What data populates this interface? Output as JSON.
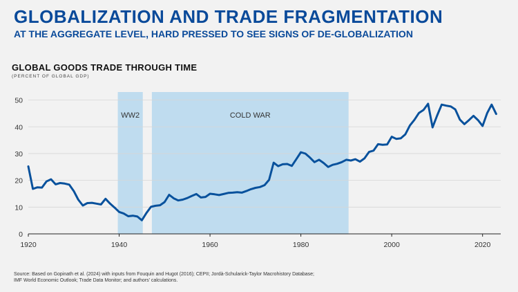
{
  "header": {
    "title": "GLOBALIZATION AND TRADE FRAGMENTATION",
    "subtitle": "AT THE AGGREGATE LEVEL, HARD PRESSED TO SEE SIGNS OF DE-GLOBALIZATION"
  },
  "colors": {
    "brand": "#0a4a9a",
    "line": "#08519c",
    "shade": "#bfdcef",
    "background": "#f2f2f2"
  },
  "chart_data": {
    "type": "line",
    "title": "GLOBAL GOODS TRADE THROUGH TIME",
    "subtitle": "(PERCENT OF GLOBAL GDP)",
    "xlim": [
      1920,
      2024
    ],
    "ylim": [
      0,
      53
    ],
    "x_ticks": [
      1920,
      1940,
      1960,
      1980,
      2000,
      2020
    ],
    "y_ticks": [
      0,
      10,
      20,
      30,
      40,
      50
    ],
    "grid": true,
    "shaded_regions": [
      {
        "label": "WW2",
        "start": 1939.7,
        "end": 1945.2
      },
      {
        "label": "COLD WAR",
        "start": 1947.2,
        "end": 1990.5
      }
    ],
    "series": [
      {
        "x": [
          1920,
          1921,
          1922,
          1923,
          1924,
          1925,
          1926,
          1927,
          1928,
          1929,
          1930,
          1931,
          1932,
          1933,
          1934,
          1935,
          1936,
          1937,
          1938,
          1939,
          1940,
          1941,
          1942,
          1943,
          1944,
          1945,
          1946,
          1947,
          1948,
          1949,
          1950,
          1951,
          1952,
          1953,
          1954,
          1955,
          1956,
          1957,
          1958,
          1959,
          1960,
          1961,
          1962,
          1963,
          1964,
          1965,
          1966,
          1967,
          1968,
          1969,
          1970,
          1971,
          1972,
          1973,
          1974,
          1975,
          1976,
          1977,
          1978,
          1979,
          1980,
          1981,
          1982,
          1983,
          1984,
          1985,
          1986,
          1987,
          1988,
          1989,
          1990,
          1991,
          1992,
          1993,
          1994,
          1995,
          1996,
          1997,
          1998,
          1999,
          2000,
          2001,
          2002,
          2003,
          2004,
          2005,
          2006,
          2007,
          2008,
          2009,
          2010,
          2011,
          2012,
          2013,
          2014,
          2015,
          2016,
          2017,
          2018,
          2019,
          2020,
          2021,
          2022,
          2023
        ],
        "y": [
          25.2,
          16.8,
          17.4,
          17.3,
          19.6,
          20.4,
          18.5,
          19.0,
          18.8,
          18.4,
          16.0,
          12.8,
          10.6,
          11.5,
          11.6,
          11.3,
          11.0,
          13.1,
          11.3,
          9.8,
          8.2,
          7.6,
          6.6,
          6.8,
          6.5,
          5.1,
          7.8,
          10.1,
          10.5,
          10.7,
          11.9,
          14.6,
          13.3,
          12.5,
          12.8,
          13.4,
          14.2,
          14.9,
          13.6,
          13.8,
          15.0,
          14.8,
          14.5,
          14.9,
          15.3,
          15.4,
          15.6,
          15.4,
          16.0,
          16.7,
          17.2,
          17.5,
          18.2,
          20.2,
          26.6,
          25.3,
          26.0,
          26.1,
          25.4,
          27.9,
          30.5,
          30.0,
          28.5,
          26.8,
          27.7,
          26.5,
          25.0,
          25.8,
          26.2,
          26.8,
          27.7,
          27.4,
          27.9,
          27.0,
          28.2,
          30.6,
          31.1,
          33.5,
          33.3,
          33.4,
          36.3,
          35.5,
          35.7,
          37.2,
          40.5,
          42.6,
          45.2,
          46.3,
          48.6,
          39.8,
          44.2,
          48.3,
          47.9,
          47.6,
          46.5,
          42.7,
          41.0,
          42.5,
          44.1,
          42.5,
          40.3,
          45.1,
          48.3,
          44.8
        ]
      }
    ]
  },
  "source": {
    "lines": [
      "Source: Based on Gopinath et al. (2024) with inputs from Fouquin and Hugot (2016); CEPII; Jordà-Schularick-Taylor Macrohistory Database;",
      "IMF World Economic Outlook; Trade Data Monitor; and authors' calculations."
    ]
  }
}
